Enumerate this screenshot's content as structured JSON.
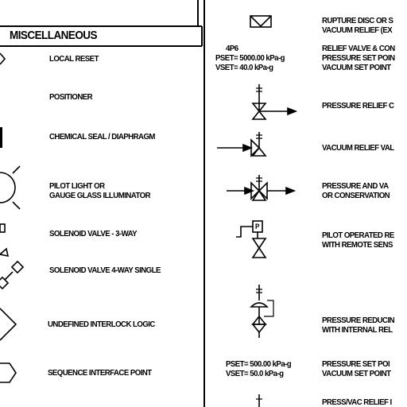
{
  "left_panel": {
    "header": "MISCELLANEOUS",
    "items": [
      {
        "label": "LOCAL RESET",
        "icon": "local-reset-icon"
      },
      {
        "label": "POSITIONER",
        "icon": "positioner-icon"
      },
      {
        "label": "CHEMICAL SEAL / DIAPHRAGM",
        "icon": "chemical-seal-icon"
      },
      {
        "label": "PILOT LIGHT OR\nGAUGE GLASS ILLUMINATOR",
        "icon": "pilot-light-icon"
      },
      {
        "label": "SOLENOID VALVE - 3-WAY",
        "icon": "solenoid-3way-icon"
      },
      {
        "label": "SOLENOID VALVE 4-WAY SINGLE",
        "icon": "solenoid-4way-icon"
      },
      {
        "label": "UNDEFINED INTERLOCK LOGIC",
        "icon": "interlock-logic-icon"
      },
      {
        "label": "SEQUENCE INTERFACE POINT",
        "icon": "sequence-point-icon"
      }
    ]
  },
  "right_panel": {
    "items": [
      {
        "label": "RUPTURE DISC OR S\nVACUUM RELIEF (EX",
        "icon": "rupture-disc-icon"
      },
      {
        "label": "RELIEF VALVE & CON\nPRESSURE SET POIN\nVACUUM SET POINT",
        "icon": "relief-valve-tag-icon",
        "tag": "4P6",
        "pset": "PSET= 5000.00 kPa-g",
        "vset": "VSET= 40.0 kPa-g"
      },
      {
        "label": "PRESSURE RELIEF C",
        "icon": "pressure-relief-icon"
      },
      {
        "label": "VACUUM RELIEF VAL",
        "icon": "vacuum-relief-icon"
      },
      {
        "label": "PRESSURE AND VA\nOR CONSERVATION",
        "icon": "pressure-vacuum-icon"
      },
      {
        "label": "PILOT OPERATED RE\nWITH REMOTE SENS",
        "icon": "pilot-operated-icon",
        "pilot_letter": "P"
      },
      {
        "label": "PRESSURE REDUCIN\nWITH INTERNAL REL",
        "icon": "pressure-reducing-icon"
      },
      {
        "label": "PRESSURE SET POI\nVACUUM SET POINT",
        "icon": "set-point-tag-icon",
        "pset": "PSET= 500.00 kPa-g",
        "vset": "VSET= 50.0 kPa-g"
      },
      {
        "label": "PRESS/VAC RELIEF I",
        "icon": "press-vac-relief-icon"
      }
    ]
  }
}
